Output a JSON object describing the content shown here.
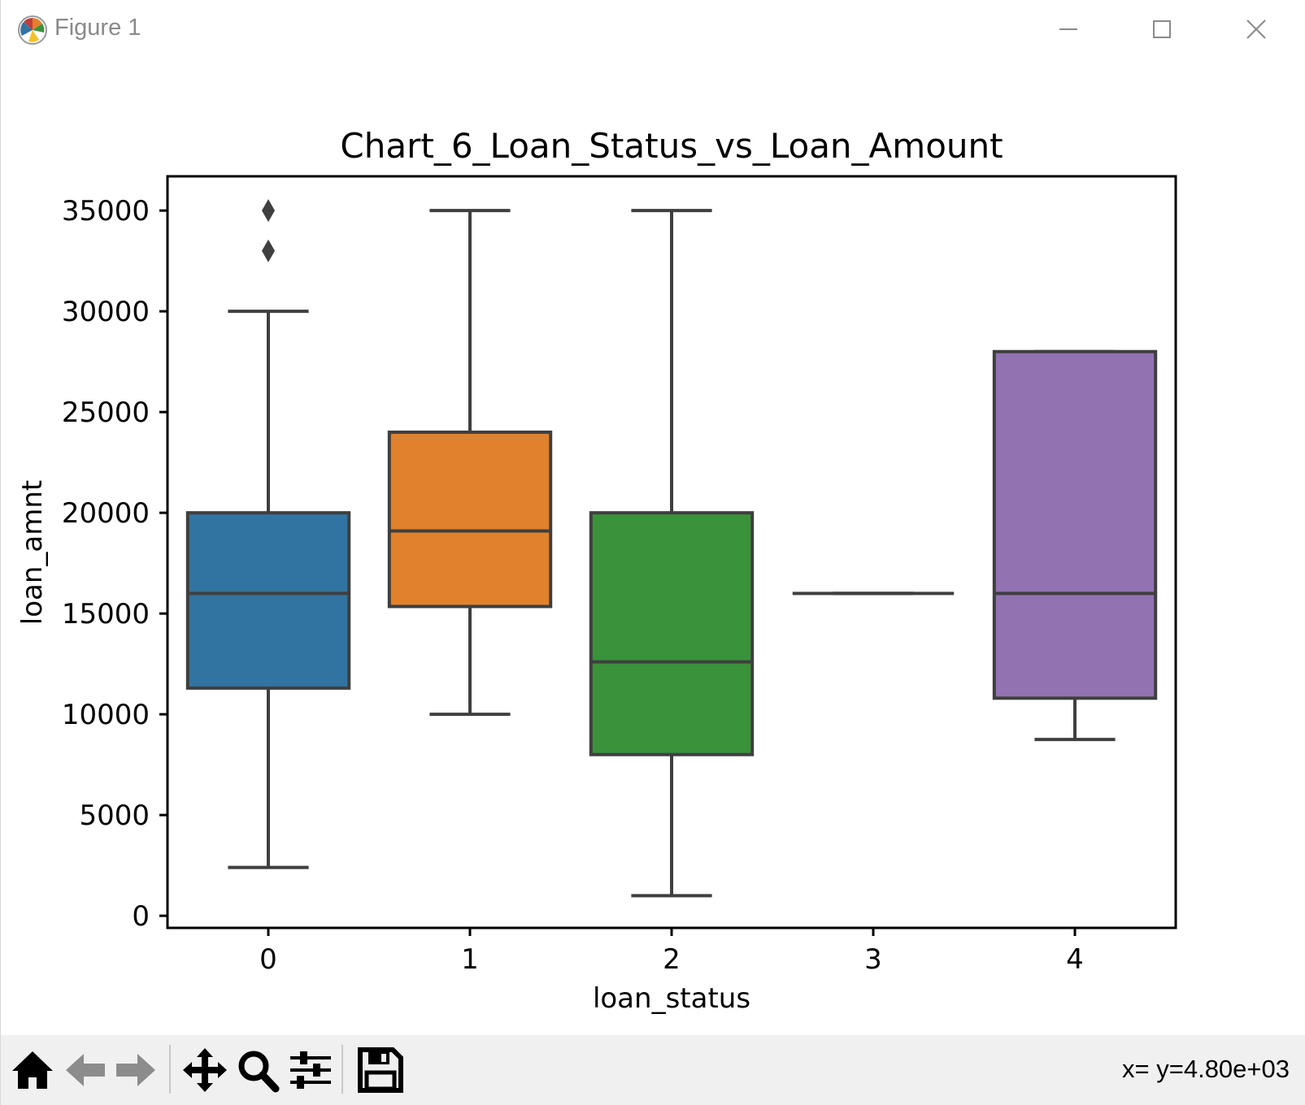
{
  "window": {
    "title": "Figure 1",
    "minimize_icon": "minimize-icon",
    "maximize_icon": "maximize-icon",
    "close_icon": "close-icon"
  },
  "toolbar": {
    "buttons": [
      {
        "name": "home",
        "icon": "home-icon"
      },
      {
        "name": "back",
        "icon": "back-arrow-icon"
      },
      {
        "name": "forward",
        "icon": "forward-arrow-icon"
      },
      {
        "name": "pan",
        "icon": "move-icon"
      },
      {
        "name": "zoom",
        "icon": "magnifier-icon"
      },
      {
        "name": "configure-subplots",
        "icon": "sliders-icon"
      },
      {
        "name": "save",
        "icon": "floppy-disk-icon"
      }
    ],
    "coordinates": "x= y=4.80e+03"
  },
  "chart_data": {
    "type": "box",
    "title": "Chart_6_Loan_Status_vs_Loan_Amount",
    "xlabel": "loan_status",
    "ylabel": "loan_amnt",
    "categories": [
      "0",
      "1",
      "2",
      "3",
      "4"
    ],
    "yticks": [
      0,
      5000,
      10000,
      15000,
      20000,
      25000,
      30000,
      35000
    ],
    "ytick_labels": [
      "0",
      "5000",
      "10000",
      "15000",
      "20000",
      "25000",
      "30000",
      "35000"
    ],
    "ylim": [
      -600,
      36700
    ],
    "grid": false,
    "boxes": [
      {
        "category": "0",
        "whisker_low": 2400,
        "q1": 11300,
        "median": 16000,
        "q3": 20000,
        "whisker_high": 30000,
        "outliers": [
          33000,
          35000
        ],
        "color": "#3274a1"
      },
      {
        "category": "1",
        "whisker_low": 10000,
        "q1": 15350,
        "median": 19100,
        "q3": 24000,
        "whisker_high": 35000,
        "outliers": [],
        "color": "#e1812c"
      },
      {
        "category": "2",
        "whisker_low": 1000,
        "q1": 8000,
        "median": 12600,
        "q3": 20000,
        "whisker_high": 35000,
        "outliers": [],
        "color": "#3a923a"
      },
      {
        "category": "3",
        "whisker_low": 16000,
        "q1": 16000,
        "median": 16000,
        "q3": 16000,
        "whisker_high": 16000,
        "outliers": [],
        "color": "#c03d3e"
      },
      {
        "category": "4",
        "whisker_low": 8750,
        "q1": 10800,
        "median": 16000,
        "q3": 28000,
        "whisker_high": 28000,
        "outliers": [],
        "color": "#9372b2"
      }
    ],
    "line_color": "#3f3f3f"
  }
}
